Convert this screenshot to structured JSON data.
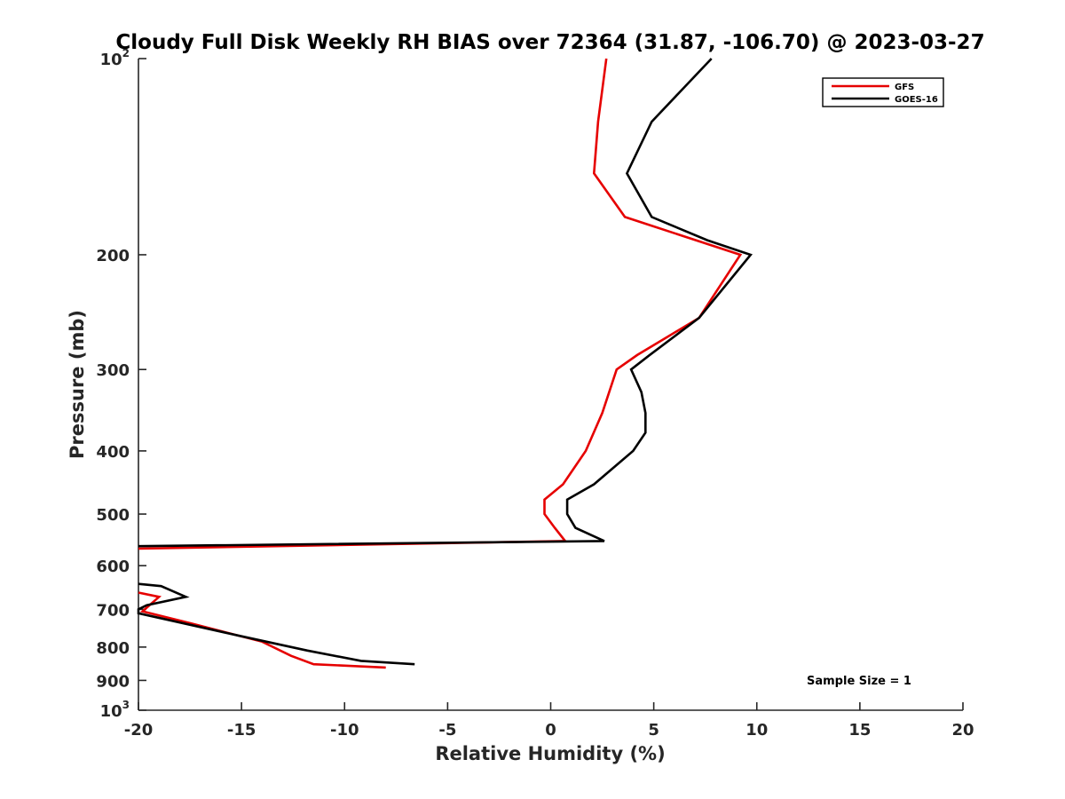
{
  "chart_data": {
    "type": "line",
    "title": "Cloudy Full Disk Weekly RH BIAS over 72364 (31.87, -106.70) @ 2023-03-27",
    "xlabel": "Relative Humidity (%)",
    "ylabel": "Pressure (mb)",
    "xlim": [
      -20,
      20
    ],
    "ylim": [
      100,
      1000
    ],
    "y_scale": "log",
    "y_reversed": true,
    "grid": false,
    "legend_position": "top-right",
    "x_ticks": [
      "-20",
      "-15",
      "-10",
      "-5",
      "0",
      "5",
      "10",
      "15",
      "20"
    ],
    "y_ticks": [
      {
        "value": 100,
        "base": "10",
        "exp": "2"
      },
      {
        "value": 200,
        "label": "200"
      },
      {
        "value": 300,
        "label": "300"
      },
      {
        "value": 400,
        "label": "400"
      },
      {
        "value": 500,
        "label": "500"
      },
      {
        "value": 600,
        "label": "600"
      },
      {
        "value": 700,
        "label": "700"
      },
      {
        "value": 800,
        "label": "800"
      },
      {
        "value": 900,
        "label": "900"
      },
      {
        "value": 1000,
        "base": "10",
        "exp": "3"
      }
    ],
    "series": [
      {
        "name": "GFS",
        "color": "#e60000",
        "segments": [
          [
            {
              "x": 2.7,
              "y": 100
            },
            {
              "x": 2.3,
              "y": 125
            },
            {
              "x": 2.1,
              "y": 150
            },
            {
              "x": 3.6,
              "y": 175
            },
            {
              "x": 9.2,
              "y": 200
            },
            {
              "x": 7.2,
              "y": 250
            },
            {
              "x": 4.2,
              "y": 285
            },
            {
              "x": 3.2,
              "y": 300
            },
            {
              "x": 2.5,
              "y": 350
            },
            {
              "x": 1.7,
              "y": 400
            },
            {
              "x": 0.6,
              "y": 450
            },
            {
              "x": -0.3,
              "y": 475
            },
            {
              "x": -0.3,
              "y": 500
            },
            {
              "x": 0.2,
              "y": 525
            },
            {
              "x": 0.7,
              "y": 550
            },
            {
              "x": -20,
              "y": 565
            }
          ],
          [
            {
              "x": -20,
              "y": 660
            },
            {
              "x": -19,
              "y": 670
            },
            {
              "x": -19.8,
              "y": 705
            },
            {
              "x": -17.5,
              "y": 735
            },
            {
              "x": -14,
              "y": 785
            },
            {
              "x": -12.6,
              "y": 825
            },
            {
              "x": -11.5,
              "y": 850
            },
            {
              "x": -8,
              "y": 860
            }
          ]
        ]
      },
      {
        "name": "GOES-16",
        "color": "#000000",
        "segments": [
          [
            {
              "x": 7.8,
              "y": 100
            },
            {
              "x": 4.9,
              "y": 125
            },
            {
              "x": 3.7,
              "y": 150
            },
            {
              "x": 4.9,
              "y": 175
            },
            {
              "x": 7.6,
              "y": 190
            },
            {
              "x": 9.7,
              "y": 200
            },
            {
              "x": 7.2,
              "y": 250
            },
            {
              "x": 4.8,
              "y": 285
            },
            {
              "x": 3.9,
              "y": 300
            },
            {
              "x": 4.4,
              "y": 325
            },
            {
              "x": 4.6,
              "y": 350
            },
            {
              "x": 4.6,
              "y": 375
            },
            {
              "x": 4.0,
              "y": 400
            },
            {
              "x": 2.1,
              "y": 450
            },
            {
              "x": 0.8,
              "y": 475
            },
            {
              "x": 0.8,
              "y": 500
            },
            {
              "x": 1.2,
              "y": 525
            },
            {
              "x": 2.6,
              "y": 550
            },
            {
              "x": -20,
              "y": 560
            }
          ],
          [
            {
              "x": -20,
              "y": 640
            },
            {
              "x": -18.9,
              "y": 645
            },
            {
              "x": -17.7,
              "y": 670
            },
            {
              "x": -19.6,
              "y": 690
            },
            {
              "x": -20,
              "y": 700
            },
            {
              "x": -20,
              "y": 710
            },
            {
              "x": -15,
              "y": 770
            },
            {
              "x": -11.8,
              "y": 810
            },
            {
              "x": -9.2,
              "y": 840
            },
            {
              "x": -6.6,
              "y": 850
            }
          ]
        ]
      }
    ],
    "annotations": [
      {
        "text": "Sample Size = 1",
        "x": 15,
        "y": 900,
        "align": "center"
      }
    ]
  }
}
